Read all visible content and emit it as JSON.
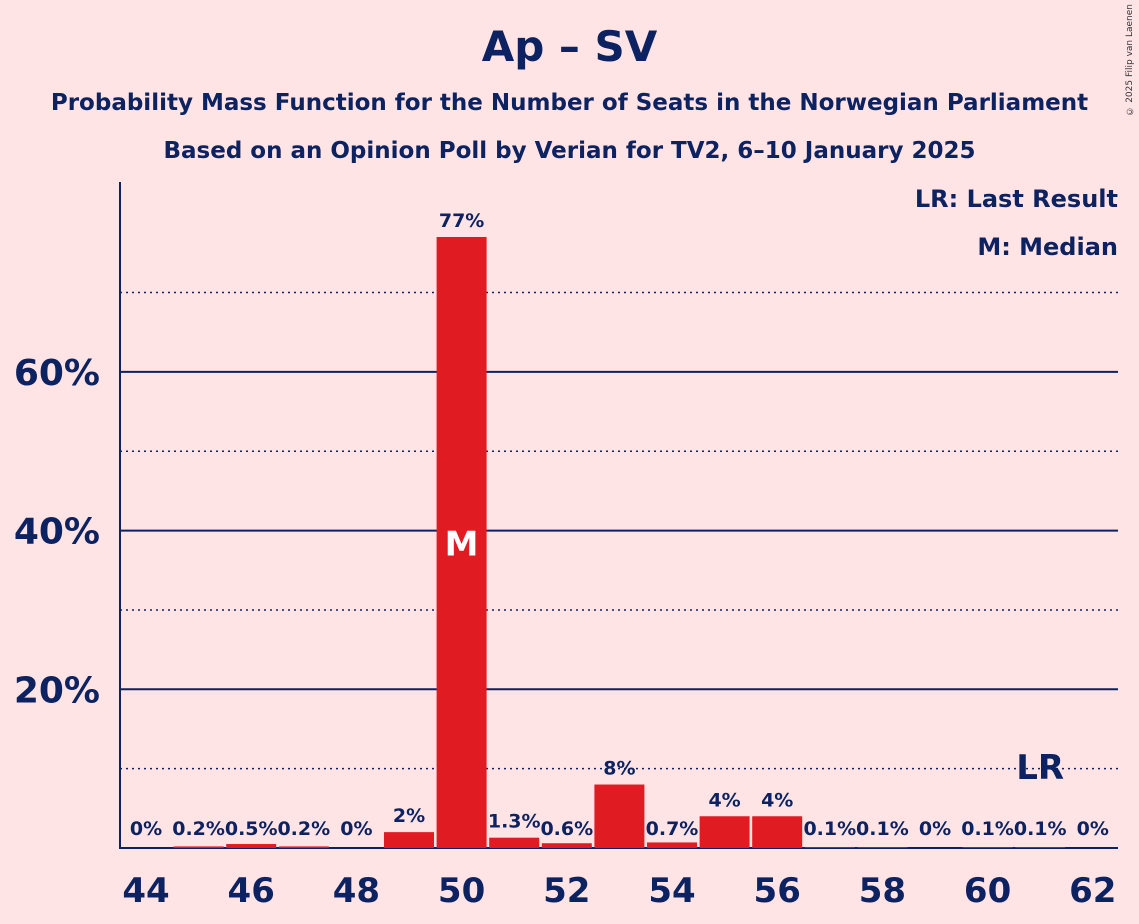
{
  "header": {
    "title": "Ap – SV",
    "subtitle1": "Probability Mass Function for the Number of Seats in the Norwegian Parliament",
    "subtitle2": "Based on an Opinion Poll by Verian for TV2, 6–10 January 2025"
  },
  "copyright": "© 2025 Filip van Laenen",
  "legend": {
    "lr": "LR: Last Result",
    "median": "M: Median"
  },
  "colors": {
    "background": "#FFE4E6",
    "bar": "#E01B22",
    "text": "#0D2260"
  },
  "chart_data": {
    "type": "bar",
    "title": "Ap – SV",
    "x": [
      44,
      45,
      46,
      47,
      48,
      49,
      50,
      51,
      52,
      53,
      54,
      55,
      56,
      57,
      58,
      59,
      60,
      61,
      62
    ],
    "values": [
      0,
      0.2,
      0.5,
      0.2,
      0,
      2,
      77,
      1.3,
      0.6,
      8,
      0.7,
      4,
      4,
      0.1,
      0.1,
      0,
      0.1,
      0.1,
      0
    ],
    "labels": [
      "0%",
      "0.2%",
      "0.5%",
      "0.2%",
      "0%",
      "2%",
      "77%",
      "1.3%",
      "0.6%",
      "8%",
      "0.7%",
      "4%",
      "4%",
      "0.1%",
      "0.1%",
      "0%",
      "0.1%",
      "0.1%",
      "0%"
    ],
    "x_tick_labels": [
      "44",
      "46",
      "48",
      "50",
      "52",
      "54",
      "56",
      "58",
      "60",
      "62"
    ],
    "y_tick_labels": [
      "20%",
      "40%",
      "60%"
    ],
    "ylim": [
      0,
      84
    ],
    "grid": "solid at 20/40/60, dotted at 10/30/50/70",
    "median_seat": 50,
    "median_label": "M",
    "last_result_seat": 61,
    "last_result_label": "LR"
  }
}
